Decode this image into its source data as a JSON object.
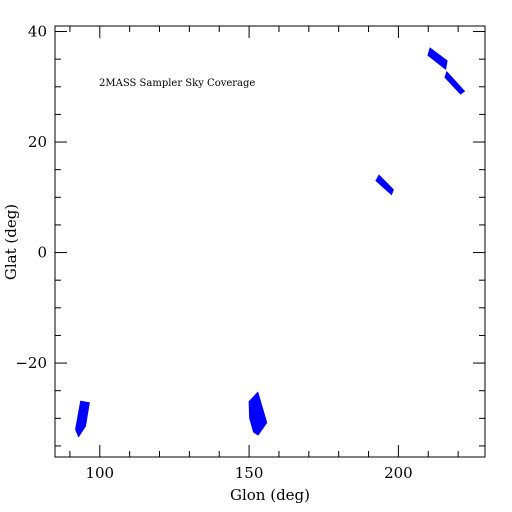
{
  "chart_data": {
    "type": "scatter",
    "xlabel": "Glon (deg)",
    "ylabel": "Glat (deg)",
    "annotation": "2MASS Sampler Sky Coverage",
    "xlim": [
      85,
      229
    ],
    "ylim": [
      -37,
      41
    ],
    "x_ticks": [
      100,
      150,
      200
    ],
    "y_ticks": [
      40,
      20,
      0,
      -20
    ],
    "x_tick_labels": [
      "100",
      "150",
      "200"
    ],
    "y_tick_labels": [
      "40",
      "20",
      "0",
      "−20"
    ],
    "grid": false,
    "marker_color": "#0000ff",
    "series": [
      {
        "points": [
          [
            93.6,
            -26.9
          ],
          [
            96.5,
            -27.2
          ],
          [
            95.2,
            -31.4
          ],
          [
            92.9,
            -33.3
          ],
          [
            91.9,
            -32.0
          ]
        ]
      },
      {
        "points": [
          [
            150.0,
            -27.0
          ],
          [
            152.9,
            -25.3
          ],
          [
            155.9,
            -30.8
          ],
          [
            153.0,
            -33.0
          ],
          [
            151.5,
            -32.5
          ],
          [
            150.2,
            -30.0
          ]
        ]
      },
      {
        "points": [
          [
            192.5,
            13.0
          ],
          [
            193.5,
            14.0
          ],
          [
            198.3,
            11.4
          ],
          [
            197.7,
            10.5
          ]
        ]
      },
      {
        "points": [
          [
            209.9,
            35.7
          ],
          [
            210.6,
            37.0
          ],
          [
            216.3,
            34.7
          ],
          [
            215.8,
            33.2
          ]
        ]
      },
      {
        "points": [
          [
            215.6,
            31.7
          ],
          [
            216.2,
            32.7
          ],
          [
            222.1,
            29.2
          ],
          [
            220.8,
            28.7
          ]
        ]
      }
    ]
  }
}
